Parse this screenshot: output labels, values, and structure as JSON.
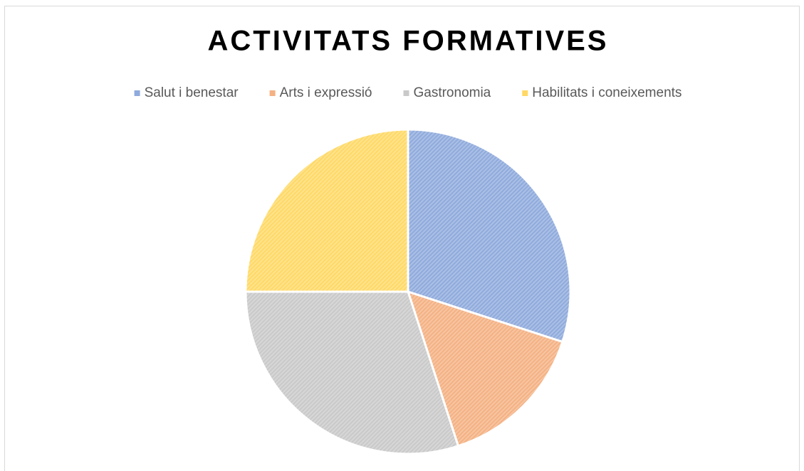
{
  "chart_data": {
    "type": "pie",
    "title": "ACTIVITATS FORMATIVES",
    "categories": [
      "Salut i benestar",
      "Arts i expressió",
      "Gastronomia",
      "Habilitats i coneixements"
    ],
    "values": [
      30,
      15,
      30,
      25
    ],
    "colors": [
      "#8faadc",
      "#f4b183",
      "#c9c9c9",
      "#ffd966"
    ],
    "legend": "top"
  }
}
